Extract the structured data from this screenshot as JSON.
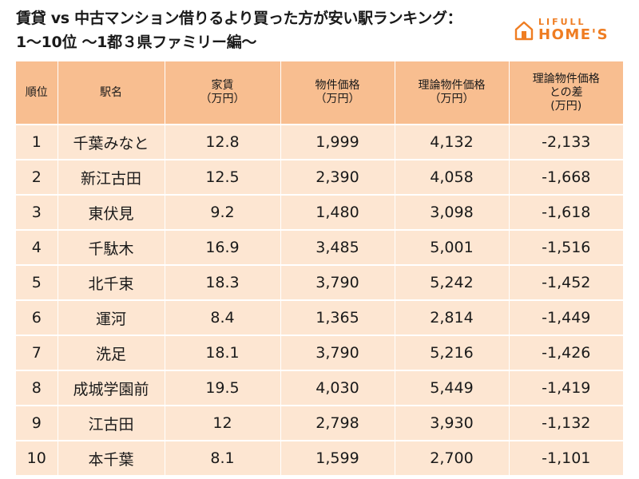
{
  "title": {
    "line1": "賃貸 vs 中古マンション借りるより買った方が安い駅ランキング：",
    "line2": "1～10位 ～1都３県ファミリー編～"
  },
  "logo": {
    "top": "LIFULL",
    "bottom": "HOME'S",
    "icon": "house-icon",
    "color": "#ef7d22"
  },
  "colors": {
    "header_bg": "#f8be90",
    "row_bg": "#fde6d2"
  },
  "table": {
    "headers": [
      [
        "順位"
      ],
      [
        "駅名"
      ],
      [
        "家賃",
        "（万円）"
      ],
      [
        "物件価格",
        "（万円）"
      ],
      [
        "理論物件価格",
        "（万円）"
      ],
      [
        "理論物件価格",
        "との差",
        "(万円)"
      ]
    ],
    "rows": [
      [
        "1",
        "千葉みなと",
        "12.8",
        "1,999",
        "4,132",
        "-2,133"
      ],
      [
        "2",
        "新江古田",
        "12.5",
        "2,390",
        "4,058",
        "-1,668"
      ],
      [
        "3",
        "東伏見",
        "9.2",
        "1,480",
        "3,098",
        "-1,618"
      ],
      [
        "4",
        "千駄木",
        "16.9",
        "3,485",
        "5,001",
        "-1,516"
      ],
      [
        "5",
        "北千束",
        "18.3",
        "3,790",
        "5,242",
        "-1,452"
      ],
      [
        "6",
        "運河",
        "8.4",
        "1,365",
        "2,814",
        "-1,449"
      ],
      [
        "7",
        "洗足",
        "18.1",
        "3,790",
        "5,216",
        "-1,426"
      ],
      [
        "8",
        "成城学園前",
        "19.5",
        "4,030",
        "5,449",
        "-1,419"
      ],
      [
        "9",
        "江古田",
        "12",
        "2,798",
        "3,930",
        "-1,132"
      ],
      [
        "10",
        "本千葉",
        "8.1",
        "1,599",
        "2,700",
        "-1,101"
      ]
    ]
  }
}
